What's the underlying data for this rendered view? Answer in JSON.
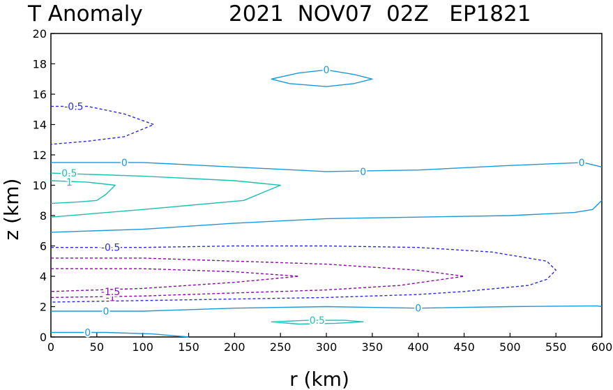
{
  "chart_data": {
    "type": "contour",
    "title_left": "T Anomaly",
    "title_right": "2021  NOV07  02Z   EP1821",
    "xlabel": "r (km)",
    "ylabel": "z (km)",
    "xlim": [
      0,
      600
    ],
    "ylim": [
      0,
      20
    ],
    "x_ticks": [
      0,
      50,
      100,
      150,
      200,
      250,
      300,
      350,
      400,
      450,
      500,
      550,
      600
    ],
    "y_ticks": [
      0,
      2,
      4,
      6,
      8,
      10,
      12,
      14,
      16,
      18,
      20
    ],
    "colors": {
      "0": "#1a98d8",
      "0.5": "#1cbfb0",
      "1": "#1cbfb0",
      "-0.5": "#2a2ad8",
      "-1": "#8a0aa8",
      "-1.5": "#8a0aa8"
    },
    "contours": [
      {
        "level": "0",
        "label": "0",
        "dashed": false,
        "points": [
          [
            240,
            17
          ],
          [
            270,
            17.4
          ],
          [
            300,
            17.6
          ],
          [
            330,
            17.3
          ],
          [
            350,
            17
          ],
          [
            330,
            16.7
          ],
          [
            300,
            16.5
          ],
          [
            260,
            16.7
          ],
          [
            240,
            17
          ]
        ]
      },
      {
        "level": "0",
        "label": "0",
        "dashed": false,
        "points": [
          [
            0,
            11.5
          ],
          [
            100,
            11.5
          ],
          [
            200,
            11.2
          ],
          [
            300,
            10.9
          ],
          [
            400,
            11.0
          ],
          [
            500,
            11.3
          ],
          [
            580,
            11.5
          ],
          [
            600,
            11.2
          ]
        ]
      },
      {
        "level": "0",
        "label": "0",
        "dashed": false,
        "points": [
          [
            600,
            9
          ],
          [
            590,
            8.4
          ],
          [
            570,
            8.2
          ],
          [
            500,
            8.0
          ],
          [
            400,
            7.9
          ],
          [
            300,
            7.8
          ],
          [
            200,
            7.5
          ],
          [
            100,
            7.1
          ],
          [
            0,
            6.9
          ]
        ]
      },
      {
        "level": "0",
        "label": "0",
        "dashed": false,
        "points": [
          [
            0,
            1.7
          ],
          [
            100,
            1.7
          ],
          [
            200,
            1.9
          ],
          [
            300,
            2.0
          ],
          [
            400,
            1.9
          ],
          [
            500,
            2.0
          ],
          [
            595,
            2.05
          ],
          [
            600,
            2.0
          ]
        ]
      },
      {
        "level": "0",
        "label": "0",
        "dashed": false,
        "points": [
          [
            0,
            0.3
          ],
          [
            60,
            0.3
          ],
          [
            110,
            0.2
          ],
          [
            150,
            0
          ]
        ]
      },
      {
        "level": "0.5",
        "label": "0.5",
        "dashed": false,
        "points": [
          [
            0,
            10.8
          ],
          [
            100,
            10.6
          ],
          [
            200,
            10.3
          ],
          [
            250,
            10.0
          ],
          [
            210,
            9.0
          ],
          [
            100,
            8.4
          ],
          [
            0,
            7.9
          ]
        ]
      },
      {
        "level": "0.5",
        "label": "0.5",
        "dashed": false,
        "points": [
          [
            240,
            1.0
          ],
          [
            280,
            1.1
          ],
          [
            320,
            1.1
          ],
          [
            340,
            1.0
          ],
          [
            310,
            0.9
          ],
          [
            270,
            0.85
          ],
          [
            240,
            1.0
          ]
        ]
      },
      {
        "level": "1",
        "label": "1",
        "dashed": false,
        "points": [
          [
            0,
            10.3
          ],
          [
            40,
            10.2
          ],
          [
            70,
            10.0
          ],
          [
            60,
            9.4
          ],
          [
            50,
            9.0
          ],
          [
            30,
            8.9
          ],
          [
            0,
            8.8
          ]
        ]
      },
      {
        "level": "-0.5",
        "label": "-0.5",
        "dashed": true,
        "points": [
          [
            0,
            15.2
          ],
          [
            40,
            15.2
          ],
          [
            80,
            14.7
          ],
          [
            112,
            14.0
          ],
          [
            80,
            13.2
          ],
          [
            40,
            12.9
          ],
          [
            0,
            12.7
          ]
        ]
      },
      {
        "level": "-0.5",
        "label": "-0.5",
        "dashed": true,
        "points": [
          [
            0,
            5.9
          ],
          [
            100,
            5.9
          ],
          [
            200,
            6.0
          ],
          [
            300,
            6.0
          ],
          [
            400,
            5.9
          ],
          [
            480,
            5.6
          ],
          [
            540,
            5.0
          ],
          [
            550,
            4.4
          ],
          [
            540,
            3.8
          ],
          [
            520,
            3.4
          ],
          [
            450,
            3.0
          ],
          [
            400,
            2.8
          ],
          [
            300,
            2.6
          ],
          [
            200,
            2.5
          ],
          [
            100,
            2.4
          ],
          [
            0,
            2.3
          ]
        ]
      },
      {
        "level": "-1",
        "label": "-1",
        "dashed": true,
        "points": [
          [
            0,
            5.2
          ],
          [
            100,
            5.2
          ],
          [
            200,
            5.0
          ],
          [
            300,
            4.8
          ],
          [
            400,
            4.4
          ],
          [
            450,
            4.0
          ],
          [
            380,
            3.4
          ],
          [
            300,
            3.1
          ],
          [
            200,
            2.9
          ],
          [
            100,
            2.7
          ],
          [
            0,
            2.6
          ]
        ]
      },
      {
        "level": "-1.5",
        "label": "-1.5",
        "dashed": true,
        "points": [
          [
            0,
            4.5
          ],
          [
            100,
            4.5
          ],
          [
            200,
            4.3
          ],
          [
            270,
            4.0
          ],
          [
            200,
            3.6
          ],
          [
            100,
            3.2
          ],
          [
            0,
            3.0
          ]
        ]
      }
    ],
    "labels": [
      {
        "text": "0",
        "level": "0",
        "x": 300,
        "y": 17.6
      },
      {
        "text": "0",
        "level": "0",
        "x": 80,
        "y": 11.5
      },
      {
        "text": "0",
        "level": "0",
        "x": 340,
        "y": 10.9
      },
      {
        "text": "0",
        "level": "0",
        "x": 578,
        "y": 11.5
      },
      {
        "text": "0",
        "level": "0",
        "x": 60,
        "y": 1.7
      },
      {
        "text": "0",
        "level": "0",
        "x": 400,
        "y": 1.9
      },
      {
        "text": "0",
        "level": "0",
        "x": 40,
        "y": 0.3
      },
      {
        "text": "0.5",
        "level": "0.5",
        "x": 20,
        "y": 10.8
      },
      {
        "text": "0.5",
        "level": "0.5",
        "x": 290,
        "y": 1.1
      },
      {
        "text": "1",
        "level": "1",
        "x": 20,
        "y": 10.2
      },
      {
        "text": "-0.5",
        "level": "-0.5",
        "x": 25,
        "y": 15.2
      },
      {
        "text": "-0.5",
        "level": "-0.5",
        "x": 65,
        "y": 5.9
      },
      {
        "text": "-1",
        "level": "-1",
        "x": 65,
        "y": 2.6
      },
      {
        "text": "-1.5",
        "level": "-1.5",
        "x": 65,
        "y": 3.0
      }
    ]
  }
}
